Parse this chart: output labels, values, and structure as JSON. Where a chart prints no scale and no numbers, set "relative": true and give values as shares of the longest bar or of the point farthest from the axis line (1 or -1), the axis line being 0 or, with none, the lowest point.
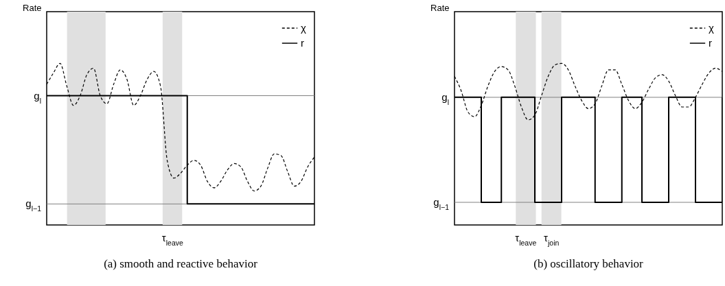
{
  "chart_data": [
    {
      "type": "line",
      "relative": true,
      "title": "(a) smooth and reactive behavior",
      "ylabel": "Rate",
      "legend": "top right",
      "categories": [
        null,
        null,
        null,
        null,
        null,
        null,
        null,
        null,
        null,
        null,
        null,
        null,
        null,
        null,
        null,
        null,
        null,
        null,
        null,
        null,
        null,
        null,
        null,
        null,
        null,
        null,
        null,
        null,
        null,
        null,
        null,
        null,
        null,
        null,
        null,
        null,
        null,
        null,
        null,
        null,
        null
      ],
      "series": [
        {
          "name": "χ",
          "color": "#000000",
          "line_style": "dashed",
          "values": [
            0.87,
            0.94,
            1.0,
            0.86,
            0.74,
            0.8,
            0.93,
            0.97,
            0.8,
            0.75,
            0.87,
            0.96,
            0.9,
            0.74,
            0.8,
            0.9,
            0.95,
            0.86,
            0.4,
            0.29,
            0.32,
            0.37,
            0.4,
            0.37,
            0.27,
            0.23,
            0.27,
            0.34,
            0.38,
            0.36,
            0.27,
            0.21,
            0.24,
            0.35,
            0.44,
            0.43,
            0.33,
            0.24,
            0.27,
            0.36,
            0.42
          ]
        },
        {
          "name": "r",
          "type": "step",
          "color": "#000000",
          "line_style": "solid",
          "values": [
            0.8,
            0.8,
            0.8,
            0.8,
            0.8,
            0.8,
            0.8,
            0.8,
            0.8,
            0.8,
            0.8,
            0.8,
            0.8,
            0.8,
            0.8,
            0.8,
            0.8,
            0.8,
            0.8,
            0.8,
            0.8,
            0.13,
            0.13,
            0.13,
            0.13,
            0.13,
            0.13,
            0.13,
            0.13,
            0.13,
            0.13,
            0.13,
            0.13,
            0.13,
            0.13,
            0.13,
            0.13,
            0.13,
            0.13,
            0.13,
            0.13
          ]
        }
      ],
      "ref_lines": [
        {
          "axis": "y",
          "value": 0.8,
          "label": "g$_{l}$",
          "color": "#808080"
        },
        {
          "axis": "y",
          "value": 0.13,
          "label": "g$_{l−1}$",
          "color": "#808080"
        }
      ],
      "annotations": [
        "τ$_{leave}$"
      ]
    },
    {
      "type": "line",
      "relative": true,
      "title": "(b) oscillatory behavior",
      "ylabel": "Rate",
      "legend": "top right",
      "categories": [
        null,
        null,
        null,
        null,
        null,
        null,
        null,
        null,
        null,
        null,
        null,
        null,
        null,
        null,
        null,
        null,
        null,
        null,
        null,
        null,
        null,
        null,
        null,
        null,
        null,
        null,
        null,
        null,
        null,
        null,
        null,
        null,
        null,
        null,
        null,
        null,
        null,
        null,
        null,
        null,
        null
      ],
      "series": [
        {
          "name": "χ",
          "color": "#000000",
          "line_style": "dashed",
          "values": [
            0.92,
            0.83,
            0.7,
            0.67,
            0.74,
            0.86,
            0.95,
            0.98,
            0.96,
            0.86,
            0.73,
            0.65,
            0.68,
            0.8,
            0.92,
            0.99,
            1.0,
            0.96,
            0.86,
            0.77,
            0.72,
            0.75,
            0.86,
            0.96,
            0.96,
            0.87,
            0.77,
            0.72,
            0.76,
            0.84,
            0.91,
            0.93,
            0.89,
            0.8,
            0.73,
            0.73,
            0.79,
            0.87,
            0.94,
            0.97,
            0.95
          ]
        },
        {
          "name": "r",
          "type": "step",
          "color": "#000000",
          "line_style": "solid",
          "values": [
            0.79,
            0.79,
            0.79,
            0.79,
            0.14,
            0.14,
            0.14,
            0.79,
            0.79,
            0.79,
            0.79,
            0.79,
            0.14,
            0.14,
            0.14,
            0.14,
            0.79,
            0.79,
            0.79,
            0.79,
            0.79,
            0.14,
            0.14,
            0.14,
            0.14,
            0.79,
            0.79,
            0.79,
            0.14,
            0.14,
            0.14,
            0.14,
            0.79,
            0.79,
            0.79,
            0.79,
            0.14,
            0.14,
            0.14,
            0.14,
            0.79
          ]
        }
      ],
      "ref_lines": [
        {
          "axis": "y",
          "value": 0.79,
          "label": "g$_{l}$",
          "color": "#808080"
        },
        {
          "axis": "y",
          "value": 0.14,
          "label": "g$_{l−1}$",
          "color": "#808080"
        }
      ],
      "annotations": [
        "τ$_{leave}$",
        "τ$_{join}$"
      ]
    }
  ]
}
